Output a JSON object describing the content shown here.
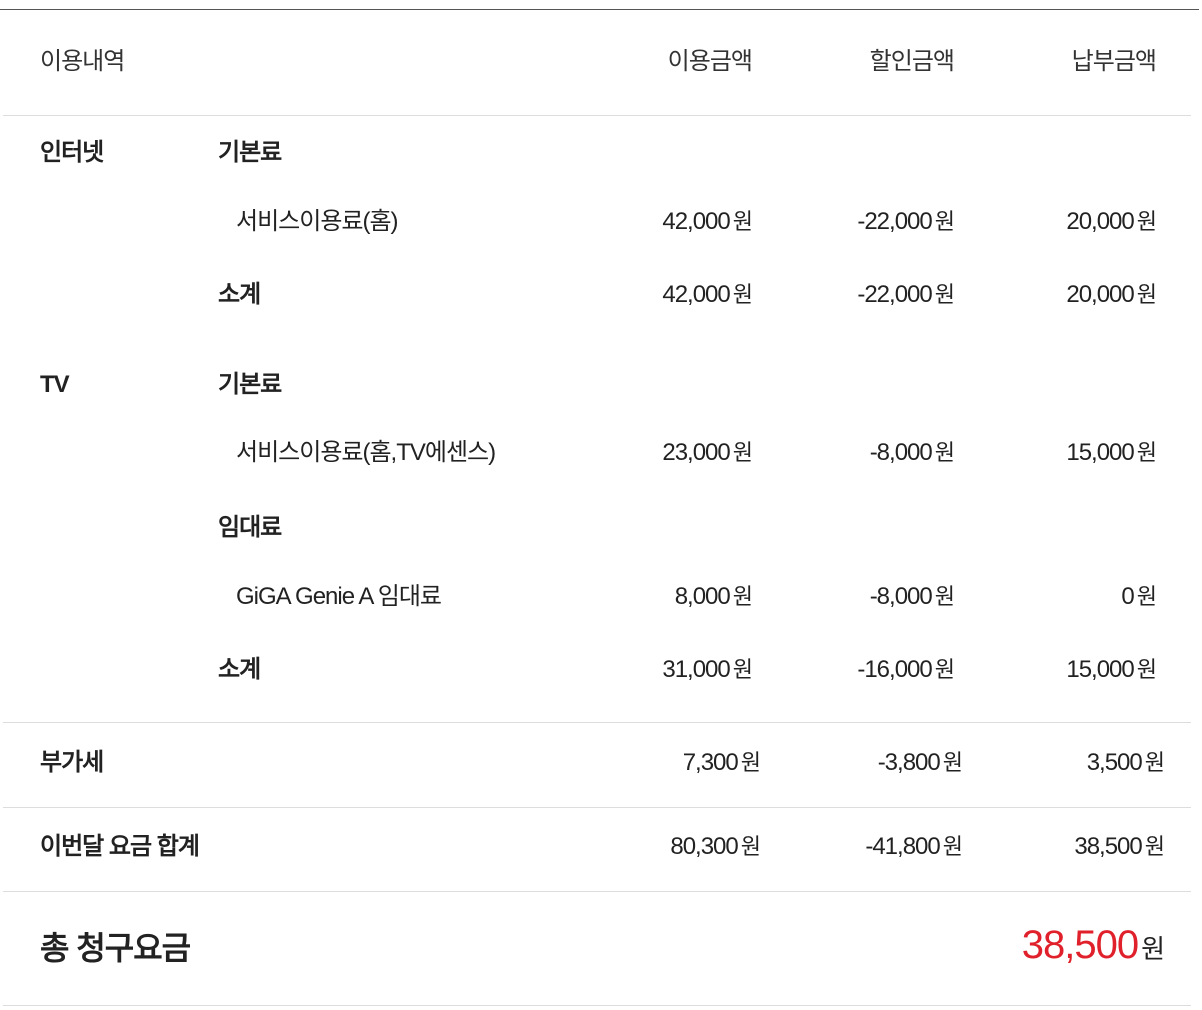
{
  "header": {
    "item": "이용내역",
    "usage": "이용금액",
    "discount": "할인금액",
    "payment": "납부금액"
  },
  "currency_unit": "원",
  "sections": [
    {
      "name": "인터넷",
      "rows": [
        {
          "type": "group",
          "label": "기본료"
        },
        {
          "type": "item",
          "label": "서비스이용료(홈)",
          "usage": "42,000",
          "discount": "-22,000",
          "payment": "20,000"
        },
        {
          "type": "subtotal",
          "label": "소계",
          "usage": "42,000",
          "discount": "-22,000",
          "payment": "20,000"
        }
      ]
    },
    {
      "name": "TV",
      "rows": [
        {
          "type": "group",
          "label": "기본료"
        },
        {
          "type": "item",
          "label": "서비스이용료(홈,TV에센스)",
          "usage": "23,000",
          "discount": "-8,000",
          "payment": "15,000"
        },
        {
          "type": "group",
          "label": "임대료"
        },
        {
          "type": "item",
          "label": "GiGA Genie A 임대료",
          "usage": "8,000",
          "discount": "-8,000",
          "payment": "0"
        },
        {
          "type": "subtotal",
          "label": "소계",
          "usage": "31,000",
          "discount": "-16,000",
          "payment": "15,000"
        }
      ]
    }
  ],
  "vat": {
    "label": "부가세",
    "usage": "7,300",
    "discount": "-3,800",
    "payment": "3,500"
  },
  "monthly_total": {
    "label": "이번달 요금 합계",
    "usage": "80,300",
    "discount": "-41,800",
    "payment": "38,500"
  },
  "grand_total": {
    "label": "총 청구요금",
    "amount": "38,500"
  },
  "colors": {
    "accent": "#e0202a",
    "text": "#222222",
    "divider": "#dddddd"
  }
}
